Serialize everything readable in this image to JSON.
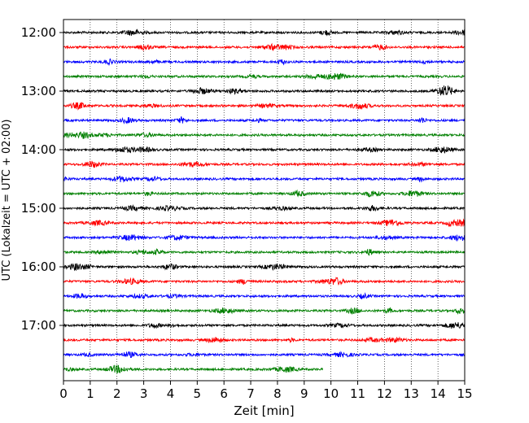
{
  "chart_data": {
    "type": "line",
    "subtype": "helicorder",
    "title": "",
    "xlabel": "Zeit  [min]",
    "ylabel": "UTC (Lokalzeit = UTC + 02:00)",
    "xlim": [
      0,
      15
    ],
    "x_ticks": [
      "0",
      "1",
      "2",
      "3",
      "4",
      "5",
      "6",
      "7",
      "8",
      "9",
      "10",
      "11",
      "12",
      "13",
      "14",
      "15"
    ],
    "y_hour_labels": [
      "12:00",
      "13:00",
      "14:00",
      "15:00",
      "16:00",
      "17:00"
    ],
    "trace_interval_min": 15,
    "grid": "vertical dotted",
    "legend": "none",
    "color_cycle": [
      "#000000",
      "#ff0000",
      "#0000ff",
      "#008000"
    ],
    "traces": [
      {
        "start": "12:00",
        "end_min": 15
      },
      {
        "start": "12:15",
        "end_min": 15
      },
      {
        "start": "12:30",
        "end_min": 15
      },
      {
        "start": "12:45",
        "end_min": 15
      },
      {
        "start": "13:00",
        "end_min": 15
      },
      {
        "start": "13:15",
        "end_min": 15
      },
      {
        "start": "13:30",
        "end_min": 15
      },
      {
        "start": "13:45",
        "end_min": 15
      },
      {
        "start": "14:00",
        "end_min": 15
      },
      {
        "start": "14:15",
        "end_min": 15
      },
      {
        "start": "14:30",
        "end_min": 15
      },
      {
        "start": "14:45",
        "end_min": 15
      },
      {
        "start": "15:00",
        "end_min": 15
      },
      {
        "start": "15:15",
        "end_min": 15
      },
      {
        "start": "15:30",
        "end_min": 15
      },
      {
        "start": "15:45",
        "end_min": 15
      },
      {
        "start": "16:00",
        "end_min": 15
      },
      {
        "start": "16:15",
        "end_min": 15
      },
      {
        "start": "16:30",
        "end_min": 15
      },
      {
        "start": "16:45",
        "end_min": 15
      },
      {
        "start": "17:00",
        "end_min": 15
      },
      {
        "start": "17:15",
        "end_min": 15
      },
      {
        "start": "17:30",
        "end_min": 15
      },
      {
        "start": "17:45",
        "end_min": 9.7
      }
    ]
  }
}
